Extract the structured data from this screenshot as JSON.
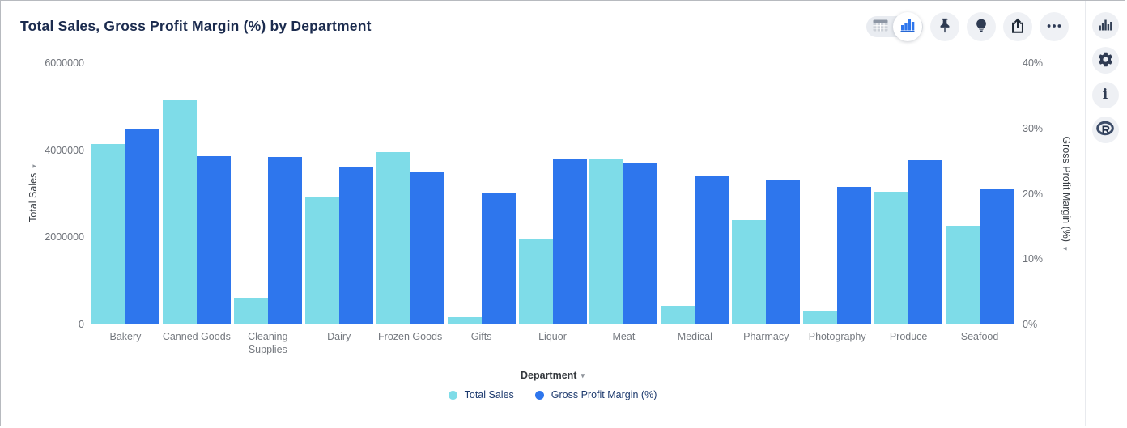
{
  "toolbar": {
    "icons": [
      "table-view-icon",
      "chart-view-icon",
      "pin-icon",
      "lightbulb-icon",
      "export-icon",
      "ellipsis-icon"
    ]
  },
  "sidebar": {
    "icons": [
      "bar-chart-icon",
      "gear-icon",
      "info-icon",
      "r-logo-icon"
    ]
  },
  "chart_data": {
    "type": "bar",
    "title": "Total Sales, Gross Profit Margin (%) by Department",
    "categories": [
      "Bakery",
      "Canned Goods",
      "Cleaning Supplies",
      "Dairy",
      "Frozen Goods",
      "Gifts",
      "Liquor",
      "Meat",
      "Medical",
      "Pharmacy",
      "Photography",
      "Produce",
      "Seafood"
    ],
    "series": [
      {
        "name": "Total Sales",
        "axis": "left",
        "color": "#7edce8",
        "values": [
          4140000,
          5150000,
          610000,
          2920000,
          3960000,
          170000,
          1950000,
          3790000,
          430000,
          2400000,
          320000,
          3050000,
          2270000
        ]
      },
      {
        "name": "Gross Profit Margin (%)",
        "axis": "right",
        "color": "#2e76ed",
        "values": [
          30.0,
          25.8,
          25.6,
          24.0,
          23.4,
          20.1,
          25.3,
          24.7,
          22.8,
          22.0,
          21.1,
          25.1,
          20.8
        ]
      }
    ],
    "left_axis": {
      "label": "Total Sales",
      "min": 0,
      "max": 6000000,
      "ticks": [
        "6000000",
        "4000000",
        "2000000",
        "0"
      ]
    },
    "right_axis": {
      "label": "Gross Profit Margin (%)",
      "min": 0,
      "max": 40,
      "ticks": [
        "40%",
        "30%",
        "20%",
        "10%",
        "0%"
      ]
    },
    "xlabel": "Department",
    "legend_position": "bottom",
    "grid": false
  }
}
